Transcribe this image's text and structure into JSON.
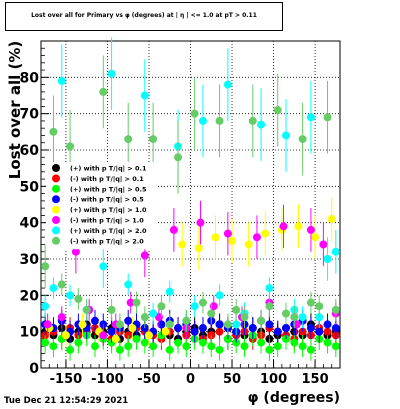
{
  "title": "Lost over all for Primary vs φ (degrees) at | η | <= 1.0 at pT > 0.11",
  "footer": "Tue Dec 21 12:54:29 2021",
  "chart_data": {
    "type": "scatter",
    "xlabel": "φ (degrees)",
    "ylabel": "Lost over all (%)",
    "xlim": [
      -180,
      180
    ],
    "ylim": [
      0,
      90
    ],
    "xticks": [
      -150,
      -100,
      -50,
      0,
      50,
      100,
      150
    ],
    "xtick_labels": [
      "-150",
      "-100",
      "-50",
      "0",
      "50",
      "100",
      "150"
    ],
    "yticks": [
      0,
      10,
      20,
      30,
      40,
      50,
      60,
      70,
      80
    ],
    "ytick_labels": [
      "0",
      "10",
      "20",
      "30",
      "40",
      "50",
      "60",
      "70",
      "80"
    ],
    "grid": true,
    "legend_position": "left-middle",
    "series": [
      {
        "name": "(+) with p T/|q| > 0.1",
        "color": "#000000",
        "x": [
          -175,
          -165,
          -155,
          -145,
          -135,
          -125,
          -115,
          -105,
          -95,
          -85,
          -75,
          -65,
          -55,
          -45,
          -35,
          -25,
          -15,
          -5,
          5,
          15,
          25,
          35,
          45,
          55,
          65,
          75,
          85,
          95,
          105,
          115,
          125,
          135,
          145,
          155,
          165,
          175
        ],
        "y": [
          10,
          9,
          11,
          8,
          10,
          12,
          9,
          10,
          11,
          8,
          10,
          9,
          11,
          10,
          12,
          9,
          8,
          10,
          11,
          9,
          10,
          12,
          8,
          10,
          9,
          11,
          10,
          8,
          9,
          11,
          10,
          9,
          12,
          10,
          9,
          10
        ]
      },
      {
        "name": "(-) with p T/|q| > 0.1",
        "color": "#ff0000",
        "x": [
          -175,
          -165,
          -155,
          -145,
          -135,
          -125,
          -115,
          -105,
          -95,
          -85,
          -75,
          -65,
          -55,
          -45,
          -35,
          -25,
          -15,
          -5,
          5,
          15,
          25,
          35,
          45,
          55,
          65,
          75,
          85,
          95,
          105,
          115,
          125,
          135,
          145,
          155,
          165,
          175
        ],
        "y": [
          9,
          10,
          8,
          11,
          9,
          10,
          11,
          9,
          8,
          10,
          9,
          11,
          10,
          9,
          8,
          10,
          11,
          9,
          10,
          8,
          9,
          10,
          11,
          9,
          10,
          8,
          9,
          11,
          10,
          9,
          8,
          10,
          9,
          11,
          10,
          9
        ]
      },
      {
        "name": "(+) with p T/|q| > 0.5",
        "color": "#00ff00",
        "x": [
          -175,
          -165,
          -155,
          -145,
          -135,
          -125,
          -115,
          -105,
          -95,
          -85,
          -75,
          -65,
          -55,
          -45,
          -35,
          -25,
          -15,
          -5,
          5,
          15,
          25,
          35,
          45,
          55,
          65,
          75,
          85,
          95,
          105,
          115,
          125,
          135,
          145,
          155,
          165,
          175
        ],
        "y": [
          7,
          6,
          8,
          5,
          7,
          9,
          6,
          8,
          7,
          5,
          6,
          8,
          7,
          6,
          9,
          5,
          7,
          6,
          8,
          7,
          6,
          5,
          8,
          7,
          6,
          9,
          7,
          5,
          6,
          8,
          7,
          6,
          5,
          8,
          7,
          6
        ]
      },
      {
        "name": "(-) with p T/|q| > 0.5",
        "color": "#0000ff",
        "x": [
          -175,
          -165,
          -155,
          -145,
          -135,
          -125,
          -115,
          -105,
          -95,
          -85,
          -75,
          -65,
          -55,
          -45,
          -35,
          -25,
          -15,
          -5,
          5,
          15,
          25,
          35,
          45,
          55,
          65,
          75,
          85,
          95,
          105,
          115,
          125,
          135,
          145,
          155,
          165,
          175
        ],
        "y": [
          12,
          11,
          13,
          10,
          12,
          11,
          13,
          12,
          10,
          11,
          13,
          12,
          11,
          10,
          12,
          13,
          11,
          12,
          10,
          11,
          13,
          12,
          11,
          10,
          12,
          11,
          13,
          12,
          10,
          11,
          12,
          13,
          11,
          10,
          12,
          11
        ]
      },
      {
        "name": "(+) with p T/|q| > 1.0",
        "color": "#ffff00",
        "x": [
          -170,
          -150,
          -130,
          -110,
          -90,
          -70,
          -50,
          -30,
          -10,
          10,
          30,
          50,
          70,
          90,
          110,
          130,
          150,
          170
        ],
        "y": [
          11,
          9,
          12,
          10,
          8,
          11,
          9,
          10,
          34,
          33,
          36,
          35,
          34,
          37,
          38,
          39,
          36,
          41
        ]
      },
      {
        "name": "(-) with p T/|q| > 1.0",
        "color": "#ff00ff",
        "x": [
          -172,
          -155,
          -138,
          -122,
          -105,
          -90,
          -72,
          -55,
          -38,
          -20,
          -5,
          12,
          28,
          45,
          62,
          80,
          95,
          112,
          128,
          145,
          160,
          175
        ],
        "y": [
          12,
          14,
          32,
          16,
          9,
          12,
          18,
          31,
          14,
          38,
          11,
          40,
          17,
          37,
          14,
          36,
          18,
          39,
          12,
          38,
          34,
          15
        ]
      },
      {
        "name": "(+) with p T/|q| > 2.0",
        "color": "#00ffff",
        "x": [
          -175,
          -165,
          -155,
          -145,
          -125,
          -105,
          -95,
          -75,
          -55,
          -45,
          -25,
          -15,
          -5,
          5,
          15,
          35,
          45,
          55,
          65,
          85,
          95,
          115,
          125,
          135,
          145,
          155,
          165,
          175
        ],
        "y": [
          17,
          22,
          79,
          20,
          16,
          28,
          81,
          23,
          75,
          15,
          21,
          61,
          13,
          17,
          68,
          20,
          78,
          12,
          15,
          67,
          22,
          64,
          16,
          14,
          69,
          14,
          30,
          32
        ]
      },
      {
        "name": "(-) with p T/|q| > 2.0",
        "color": "#66cc66",
        "x": [
          -175,
          -165,
          -155,
          -145,
          -135,
          -125,
          -105,
          -95,
          -85,
          -75,
          -65,
          -55,
          -45,
          -35,
          -25,
          -15,
          -5,
          5,
          15,
          25,
          35,
          45,
          55,
          65,
          75,
          85,
          95,
          105,
          115,
          125,
          135,
          145,
          155,
          165,
          175
        ],
        "y": [
          28,
          65,
          23,
          61,
          19,
          16,
          76,
          16,
          12,
          63,
          18,
          14,
          63,
          17,
          12,
          58,
          13,
          70,
          18,
          15,
          68,
          12,
          16,
          14,
          68,
          13,
          17,
          71,
          15,
          14,
          63,
          18,
          17,
          69,
          16
        ]
      }
    ]
  }
}
